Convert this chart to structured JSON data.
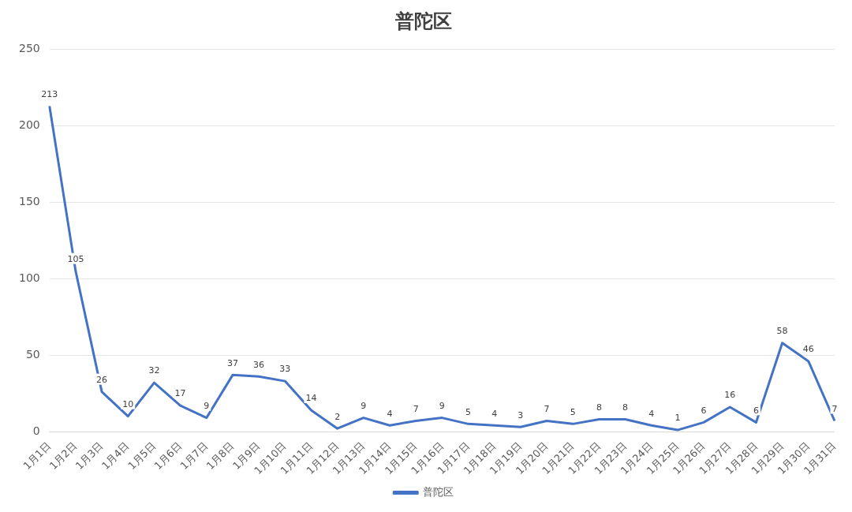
{
  "chart_data": {
    "type": "line",
    "title": "普陀区",
    "categories": [
      "1月1日",
      "1月2日",
      "1月3日",
      "1月4日",
      "1月5日",
      "1月6日",
      "1月7日",
      "1月8日",
      "1月9日",
      "1月10日",
      "1月11日",
      "1月12日",
      "1月13日",
      "1月14日",
      "1月15日",
      "1月16日",
      "1月17日",
      "1月18日",
      "1月19日",
      "1月20日",
      "1月21日",
      "1月22日",
      "1月23日",
      "1月24日",
      "1月25日",
      "1月26日",
      "1月27日",
      "1月28日",
      "1月29日",
      "1月30日",
      "1月31日"
    ],
    "series": [
      {
        "name": "普陀区",
        "color": "#4472c4",
        "values": [
          213,
          105,
          26,
          10,
          32,
          17,
          9,
          37,
          36,
          33,
          14,
          2,
          9,
          4,
          7,
          9,
          5,
          4,
          3,
          7,
          5,
          8,
          8,
          4,
          1,
          6,
          16,
          6,
          58,
          46,
          7
        ]
      }
    ],
    "ylim": [
      0,
      250
    ],
    "yticks": [
      0,
      50,
      100,
      150,
      200,
      250
    ],
    "grid": "y",
    "legend": "bottom",
    "data_labels": true,
    "marker": "none",
    "line_style": "solid"
  }
}
